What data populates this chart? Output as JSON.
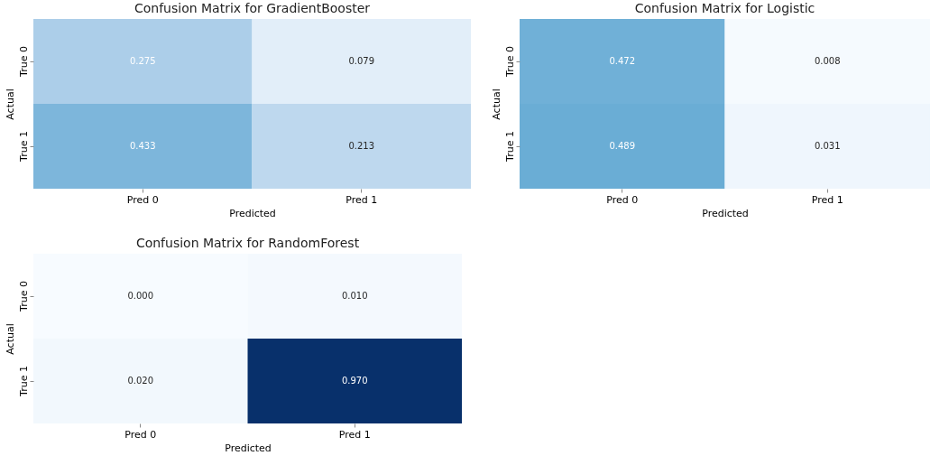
{
  "chart_data": [
    {
      "type": "heatmap",
      "title": "Confusion Matrix for GradientBooster",
      "xlabel": "Predicted",
      "ylabel": "Actual",
      "categories": [
        "Pred 0",
        "Pred 1"
      ],
      "y_categories": [
        "True 0",
        "True 1"
      ],
      "cells": [
        [
          0.275,
          0.079
        ],
        [
          0.433,
          0.213
        ]
      ],
      "cell_labels": [
        [
          "0.275",
          "0.079"
        ],
        [
          "0.433",
          "0.213"
        ]
      ]
    },
    {
      "type": "heatmap",
      "title": "Confusion Matrix for Logistic",
      "xlabel": "Predicted",
      "ylabel": "Actual",
      "categories": [
        "Pred 0",
        "Pred 1"
      ],
      "y_categories": [
        "True 0",
        "True 1"
      ],
      "cells": [
        [
          0.472,
          0.008
        ],
        [
          0.489,
          0.031
        ]
      ],
      "cell_labels": [
        [
          "0.472",
          "0.008"
        ],
        [
          "0.489",
          "0.031"
        ]
      ]
    },
    {
      "type": "heatmap",
      "title": "Confusion Matrix for RandomForest",
      "xlabel": "Predicted",
      "ylabel": "Actual",
      "categories": [
        "Pred 0",
        "Pred 1"
      ],
      "y_categories": [
        "True 0",
        "True 1"
      ],
      "cells": [
        [
          0.0,
          0.01
        ],
        [
          0.02,
          0.97
        ]
      ],
      "cell_labels": [
        [
          "0.000",
          "0.010"
        ],
        [
          "0.020",
          "0.970"
        ]
      ]
    }
  ]
}
